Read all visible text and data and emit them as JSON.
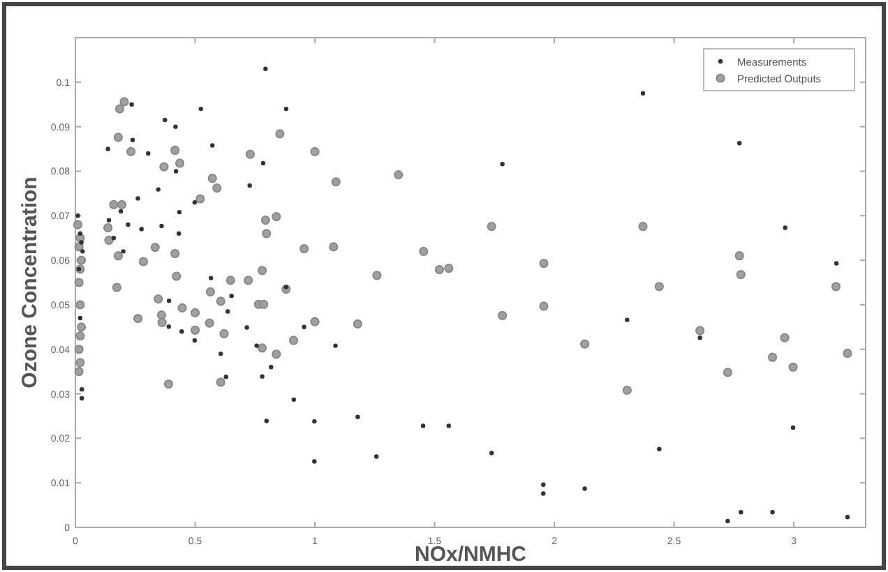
{
  "chart_data": {
    "type": "scatter",
    "xlabel": "NOx/NMHC",
    "ylabel": "Ozone Concentration",
    "xlim": [
      0,
      3.3
    ],
    "ylim": [
      0,
      0.11
    ],
    "xticks": [
      0,
      0.5,
      1,
      1.5,
      2,
      2.5,
      3
    ],
    "yticks": [
      0,
      0.01,
      0.02,
      0.03,
      0.04,
      0.05,
      0.06,
      0.07,
      0.08,
      0.09,
      0.1
    ],
    "grid": false,
    "legend": "top right",
    "marker": "circle",
    "series": [
      {
        "name": "Measurements",
        "color": "#333333",
        "x": [
          0.794,
          0.235,
          0.524,
          0.88,
          0.374,
          0.418,
          0.239,
          0.136,
          0.572,
          0.304,
          0.784,
          0.42,
          0.728,
          0.346,
          0.261,
          0.498,
          0.434,
          0.36,
          0.432,
          0.276,
          0.566,
          0.88,
          2.37,
          2.773,
          1.783,
          2.964,
          3.178,
          0.391,
          0.39,
          0.444,
          0.498,
          0.607,
          0.629,
          0.652,
          0.636,
          0.716,
          0.757,
          0.817,
          0.78,
          0.912,
          0.955,
          1.086,
          0.798,
          0.998,
          1.179,
          0.998,
          1.257,
          1.452,
          0.027,
          0.027,
          0.02,
          0.01,
          0.02,
          0.03,
          0.015,
          0.025,
          0.14,
          0.16,
          0.19,
          0.2,
          0.22,
          1.559,
          1.738,
          1.954,
          1.954,
          2.127,
          2.304,
          2.438,
          2.608,
          2.724,
          2.779,
          2.911,
          2.997,
          3.224
        ],
        "values": [
          0.103,
          0.095,
          0.094,
          0.094,
          0.0915,
          0.09,
          0.087,
          0.085,
          0.0858,
          0.084,
          0.0818,
          0.08,
          0.0768,
          0.0759,
          0.0739,
          0.073,
          0.0708,
          0.0677,
          0.066,
          0.067,
          0.056,
          0.054,
          0.0975,
          0.0863,
          0.0816,
          0.0673,
          0.0593,
          0.0509,
          0.0451,
          0.044,
          0.042,
          0.039,
          0.0338,
          0.052,
          0.0485,
          0.0449,
          0.0408,
          0.036,
          0.0339,
          0.0287,
          0.045,
          0.0408,
          0.0239,
          0.0238,
          0.0248,
          0.0148,
          0.0159,
          0.0228,
          0.031,
          0.029,
          0.047,
          0.07,
          0.066,
          0.062,
          0.058,
          0.064,
          0.069,
          0.065,
          0.071,
          0.062,
          0.068,
          0.0228,
          0.0167,
          0.0096,
          0.0076,
          0.0087,
          0.0466,
          0.0176,
          0.0426,
          0.0014,
          0.0034,
          0.0034,
          0.0224,
          0.0023
        ]
      },
      {
        "name": "Predicted Outputs",
        "color": "#a0a0a0",
        "x": [
          0.204,
          0.185,
          0.854,
          0.179,
          0.232,
          0.416,
          0.73,
          1.0,
          0.37,
          0.436,
          0.572,
          0.591,
          1.088,
          1.349,
          0.521,
          0.794,
          0.839,
          0.798,
          0.955,
          1.078,
          1.454,
          1.52,
          0.416,
          0.333,
          0.284,
          0.422,
          0.648,
          0.722,
          0.78,
          1.259,
          0.136,
          0.14,
          0.179,
          0.194,
          0.16,
          1.559,
          1.738,
          1.956,
          2.37,
          2.438,
          2.773,
          2.779,
          3.176,
          1.783,
          1.956,
          2.127,
          2.304,
          2.608,
          2.724,
          2.911,
          2.962,
          2.997,
          3.224,
          0.173,
          0.346,
          0.446,
          0.5,
          0.261,
          0.36,
          0.362,
          0.5,
          0.56,
          0.607,
          0.564,
          0.765,
          0.786,
          0.88,
          0.621,
          0.78,
          0.839,
          0.911,
          1.0,
          1.179,
          0.389,
          0.607,
          0.015,
          0.02,
          0.015,
          0.02,
          0.025,
          0.02,
          0.015,
          0.02,
          0.025,
          0.015,
          0.02,
          0.01
        ],
        "values": [
          0.0956,
          0.094,
          0.0884,
          0.0876,
          0.0844,
          0.0847,
          0.0838,
          0.0844,
          0.081,
          0.0818,
          0.0784,
          0.0762,
          0.0776,
          0.0792,
          0.0738,
          0.069,
          0.0698,
          0.066,
          0.0626,
          0.063,
          0.062,
          0.0579,
          0.0615,
          0.0629,
          0.0597,
          0.0564,
          0.0555,
          0.0555,
          0.0577,
          0.0566,
          0.0673,
          0.0645,
          0.061,
          0.0725,
          0.0725,
          0.0582,
          0.0676,
          0.0593,
          0.0676,
          0.0541,
          0.061,
          0.0568,
          0.0541,
          0.0476,
          0.0497,
          0.0412,
          0.0308,
          0.0442,
          0.0348,
          0.0382,
          0.0426,
          0.036,
          0.0391,
          0.0539,
          0.0513,
          0.0493,
          0.0482,
          0.0469,
          0.0477,
          0.046,
          0.0443,
          0.0459,
          0.0508,
          0.0529,
          0.0501,
          0.0501,
          0.0535,
          0.0435,
          0.0403,
          0.0389,
          0.042,
          0.0462,
          0.0457,
          0.0322,
          0.0326,
          0.035,
          0.037,
          0.04,
          0.043,
          0.045,
          0.05,
          0.055,
          0.058,
          0.06,
          0.063,
          0.065,
          0.068
        ]
      }
    ]
  }
}
